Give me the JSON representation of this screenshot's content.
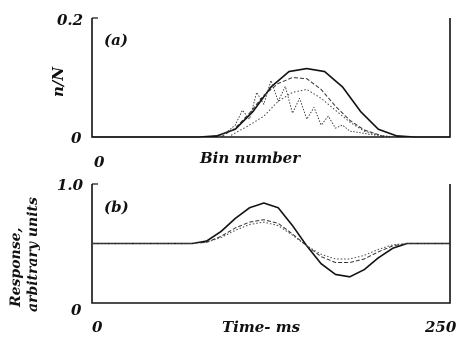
{
  "chart_data": [
    {
      "type": "line",
      "panel_label": "(a)",
      "xlabel": "Bin number",
      "ylabel": "n/N",
      "x_tick_labels": [
        "0"
      ],
      "y_tick_labels": [
        "0",
        "0.2"
      ],
      "ylim": [
        0,
        0.2
      ],
      "xlim": [
        0,
        100
      ],
      "series": [
        {
          "style": "solid",
          "x": [
            0,
            30,
            35,
            40,
            45,
            50,
            55,
            60,
            65,
            70,
            75,
            80,
            85,
            90,
            100
          ],
          "y": [
            0,
            0,
            0.002,
            0.013,
            0.043,
            0.084,
            0.11,
            0.115,
            0.11,
            0.084,
            0.043,
            0.013,
            0.002,
            0,
            0
          ]
        },
        {
          "style": "dotted-jagged",
          "x": [
            35,
            38,
            40,
            42,
            44,
            46,
            48,
            50,
            52,
            54,
            56,
            58,
            60,
            62,
            64,
            66,
            68,
            70,
            72,
            74,
            78,
            85
          ],
          "y": [
            0,
            0.01,
            0.02,
            0.045,
            0.03,
            0.075,
            0.055,
            0.095,
            0.06,
            0.085,
            0.04,
            0.065,
            0.03,
            0.05,
            0.02,
            0.035,
            0.015,
            0.02,
            0.01,
            0.008,
            0.004,
            0
          ]
        },
        {
          "style": "dashed",
          "x": [
            36,
            40,
            44,
            48,
            52,
            56,
            60,
            64,
            68,
            72,
            76,
            82
          ],
          "y": [
            0,
            0.015,
            0.04,
            0.07,
            0.09,
            0.1,
            0.098,
            0.08,
            0.052,
            0.028,
            0.012,
            0
          ]
        },
        {
          "style": "dotted",
          "x": [
            38,
            44,
            48,
            52,
            56,
            60,
            64,
            68,
            72,
            76,
            82
          ],
          "y": [
            0,
            0.02,
            0.035,
            0.06,
            0.075,
            0.08,
            0.065,
            0.045,
            0.025,
            0.01,
            0
          ]
        }
      ]
    },
    {
      "type": "line",
      "panel_label": "(b)",
      "xlabel": "Time- ms",
      "ylabel": "Response,",
      "ylabel_line2": "arbitrary units",
      "x_tick_labels": [
        "0",
        "250"
      ],
      "y_tick_labels": [
        "0",
        "1.0"
      ],
      "xlim": [
        0,
        250
      ],
      "ylim": [
        0,
        1.0
      ],
      "series": [
        {
          "style": "solid",
          "x": [
            0,
            70,
            80,
            90,
            100,
            110,
            120,
            130,
            140,
            150,
            160,
            170,
            180,
            190,
            200,
            210,
            220,
            250
          ],
          "y": [
            0.5,
            0.5,
            0.52,
            0.6,
            0.71,
            0.8,
            0.84,
            0.8,
            0.65,
            0.48,
            0.33,
            0.24,
            0.22,
            0.28,
            0.38,
            0.46,
            0.5,
            0.5
          ]
        },
        {
          "style": "dashed",
          "x": [
            0,
            70,
            80,
            90,
            100,
            110,
            120,
            130,
            140,
            150,
            160,
            170,
            180,
            190,
            200,
            210,
            220,
            250
          ],
          "y": [
            0.5,
            0.5,
            0.51,
            0.56,
            0.63,
            0.68,
            0.7,
            0.67,
            0.58,
            0.48,
            0.39,
            0.34,
            0.34,
            0.37,
            0.43,
            0.48,
            0.5,
            0.5
          ]
        },
        {
          "style": "dotted",
          "x": [
            0,
            70,
            80,
            90,
            100,
            110,
            120,
            130,
            140,
            150,
            160,
            170,
            180,
            190,
            200,
            210,
            220,
            250
          ],
          "y": [
            0.5,
            0.5,
            0.51,
            0.55,
            0.61,
            0.66,
            0.68,
            0.65,
            0.57,
            0.48,
            0.41,
            0.37,
            0.37,
            0.4,
            0.45,
            0.49,
            0.5,
            0.5
          ]
        }
      ]
    }
  ]
}
